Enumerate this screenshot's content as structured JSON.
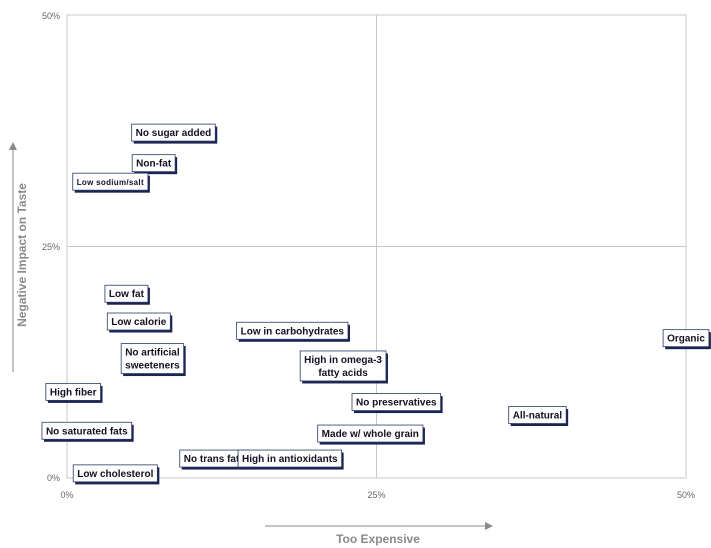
{
  "chart_data": {
    "type": "scatter",
    "title": "",
    "xlabel": "Too Expensive",
    "ylabel": "Negative Impact on Taste",
    "xlim": [
      0,
      50
    ],
    "ylim": [
      0,
      50
    ],
    "x_ticks": [
      "0%",
      "25%",
      "50%"
    ],
    "y_ticks": [
      "0%",
      "25%",
      "50%"
    ],
    "grid": "quadrant lines at 25%",
    "colors": {
      "box_border": "#2b3a67",
      "box_shadow": "#1b2350",
      "grid": "#c8c8c8",
      "plot_border": "#c8c8c8"
    },
    "points": [
      {
        "label": "No sugar added",
        "x": 8.6,
        "y": 37.3
      },
      {
        "label": "Non-fat",
        "x": 7.0,
        "y": 34.0
      },
      {
        "label": "Low sodium/salt",
        "x": 3.5,
        "y": 32.0
      },
      {
        "label": "Low fat",
        "x": 4.8,
        "y": 19.9
      },
      {
        "label": "Low calorie",
        "x": 5.8,
        "y": 16.9
      },
      {
        "label": "No artificial sweeteners",
        "x": 6.9,
        "y": 12.9
      },
      {
        "label": "High fiber",
        "x": 0.5,
        "y": 9.3
      },
      {
        "label": "No saturated fats",
        "x": 1.6,
        "y": 5.1
      },
      {
        "label": "Low cholesterol",
        "x": 3.9,
        "y": 0.5
      },
      {
        "label": "No trans fats",
        "x": 11.9,
        "y": 2.1
      },
      {
        "label": "Low in carbohydrates",
        "x": 18.2,
        "y": 15.9
      },
      {
        "label": "High in omega-3 fatty acids",
        "x": 22.3,
        "y": 12.1
      },
      {
        "label": "No preservatives",
        "x": 26.6,
        "y": 8.2
      },
      {
        "label": "Made w/ whole grain",
        "x": 24.5,
        "y": 4.8
      },
      {
        "label": "High in antioxidants",
        "x": 18.0,
        "y": 2.1
      },
      {
        "label": "All-natural",
        "x": 38.0,
        "y": 6.8
      },
      {
        "label": "Organic",
        "x": 50.0,
        "y": 15.1
      }
    ]
  }
}
